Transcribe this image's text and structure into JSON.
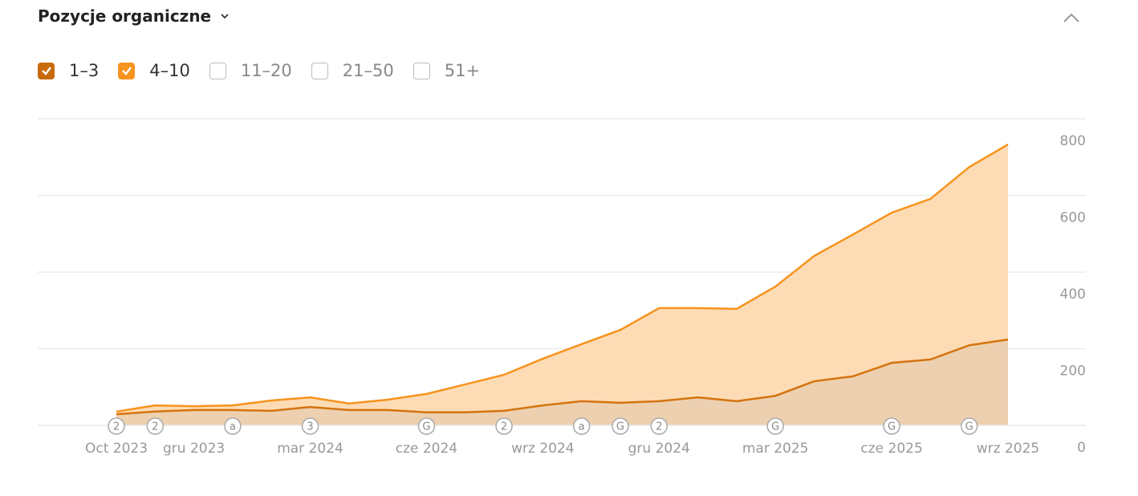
{
  "chart_data": {
    "type": "stacked-area",
    "title": "Pozycje organiczne",
    "categories": [
      "Oct 2023",
      null,
      "gru 2023",
      null,
      null,
      "mar 2024",
      null,
      null,
      "cze 2024",
      null,
      null,
      "wrz 2024",
      null,
      null,
      "gru 2024",
      null,
      null,
      "mar 2025",
      null,
      null,
      "cze 2025",
      null,
      null,
      "wrz 2025"
    ],
    "series": [
      {
        "name": "1–3",
        "color": "#d4740f",
        "fill": "#ebcba7",
        "checkbox": "#c86a0a",
        "values": [
          29,
          36,
          40,
          40,
          38,
          48,
          40,
          40,
          34,
          34,
          38,
          52,
          63,
          59,
          63,
          73,
          63,
          77,
          115,
          128,
          163,
          172,
          209,
          224
        ]
      },
      {
        "name": "4–10",
        "color": "#f7931e",
        "fill": "#fdd8ad",
        "checkbox": "#f7931e",
        "values": [
          7,
          16,
          10,
          12,
          27,
          25,
          17,
          27,
          48,
          73,
          94,
          122,
          149,
          190,
          243,
          233,
          241,
          285,
          327,
          370,
          392,
          419,
          465,
          509
        ]
      }
    ],
    "hidden_series": [
      "11–20",
      "21–50",
      "51+"
    ],
    "event_markers": [
      "2",
      "2",
      null,
      "a",
      null,
      "3",
      null,
      null,
      "G",
      null,
      "2",
      null,
      "a",
      "G",
      "2",
      null,
      null,
      "G",
      null,
      null,
      "G",
      null,
      "G",
      null
    ],
    "ylim": [
      0,
      800
    ],
    "yticks": [
      0,
      200,
      400,
      600,
      800
    ],
    "grid": true
  }
}
